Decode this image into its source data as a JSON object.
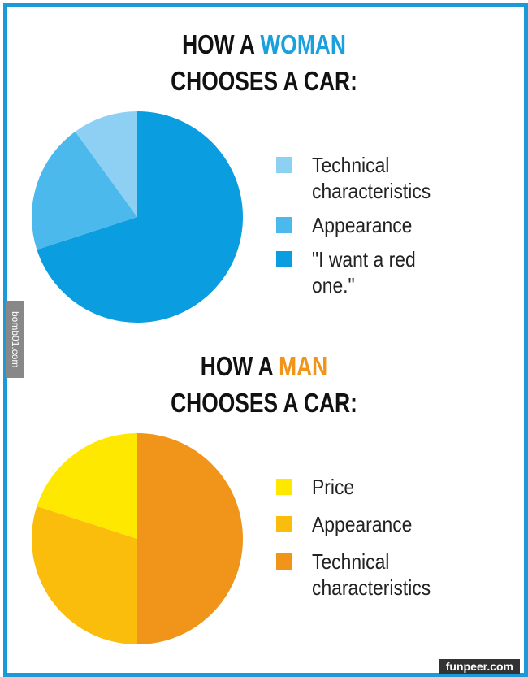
{
  "chart_data": [
    {
      "type": "pie",
      "title": [
        "HOW A",
        "WOMAN",
        "CHOOSES A CAR:"
      ],
      "title_highlight_color": "#1aa0dc",
      "categories": [
        "Technical characteristics",
        "Appearance",
        "\"I want a red one.\""
      ],
      "values": [
        10,
        20,
        70
      ],
      "colors": [
        "#8ed0f4",
        "#4cb9ec",
        "#0a9de0"
      ]
    },
    {
      "type": "pie",
      "title": [
        "HOW A",
        "MAN",
        "CHOOSES A CAR:"
      ],
      "title_highlight_color": "#f0941a",
      "categories": [
        "Price",
        "Appearance",
        "Technical characteristics"
      ],
      "values": [
        20,
        30,
        50
      ],
      "colors": [
        "#ffe800",
        "#fbbd0c",
        "#f0941a"
      ]
    }
  ],
  "watermarks": [
    "bomb01.com",
    "funpeer.com"
  ]
}
